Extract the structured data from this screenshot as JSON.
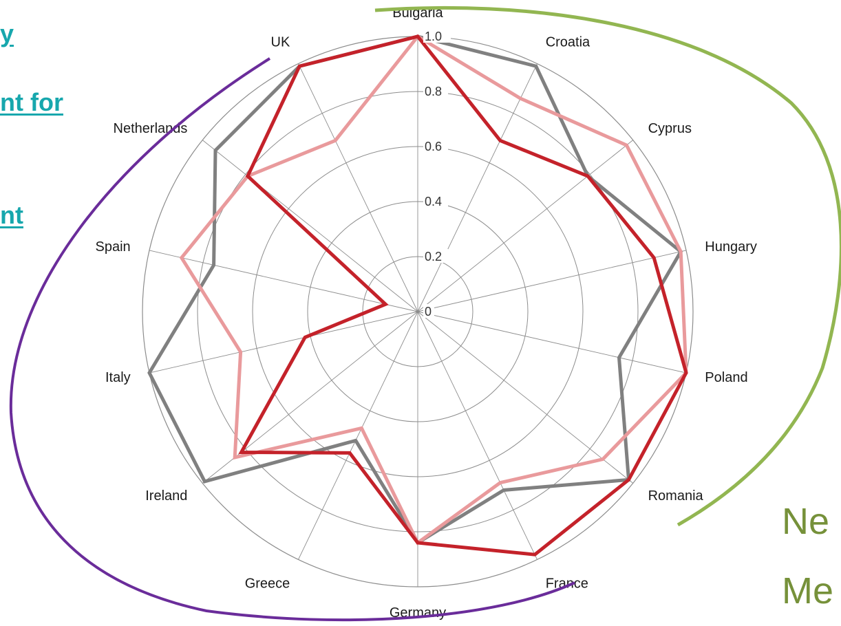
{
  "side_text": {
    "link_1": "y",
    "link_2": "nt for",
    "link_3": "nt",
    "right_1": "Ne",
    "right_2": "Me"
  },
  "colors": {
    "grid": "#8c8c8c",
    "grey_series": "#808080",
    "red_series": "#c4222a",
    "pink_series": "#e99a9c",
    "green_arc": "#92b651",
    "purple_arc": "#6a2c9a"
  },
  "chart_data": {
    "type": "radar",
    "title": "",
    "categories": [
      "Bulgaria",
      "Croatia",
      "Cyprus",
      "Hungary",
      "Poland",
      "Romania",
      "France",
      "Germany",
      "Greece",
      "Ireland",
      "Italy",
      "Spain",
      "Netherlands",
      "UK"
    ],
    "rlim": [
      0,
      1.0
    ],
    "ticks": [
      "0",
      "0.2",
      "0.4",
      "0.6",
      "0.8",
      "1.0"
    ],
    "tick_values": [
      0,
      0.2,
      0.4,
      0.6,
      0.8,
      1.0
    ],
    "series": [
      {
        "color": "#808080",
        "values": [
          1.0,
          0.99,
          0.79,
          0.98,
          0.75,
          0.98,
          0.72,
          0.84,
          0.52,
          0.99,
          1.0,
          0.76,
          0.94,
          0.99
        ]
      },
      {
        "color": "#e99a9c",
        "values": [
          1.0,
          0.86,
          0.97,
          0.98,
          1.0,
          0.86,
          0.69,
          0.84,
          0.47,
          0.85,
          0.66,
          0.88,
          0.79,
          0.69
        ]
      },
      {
        "color": "#c4222a",
        "values": [
          1.0,
          0.69,
          0.79,
          0.88,
          1.0,
          0.98,
          0.98,
          0.84,
          0.57,
          0.82,
          0.42,
          0.12,
          0.79,
          0.99
        ]
      }
    ],
    "grid": true,
    "legend": "none"
  }
}
